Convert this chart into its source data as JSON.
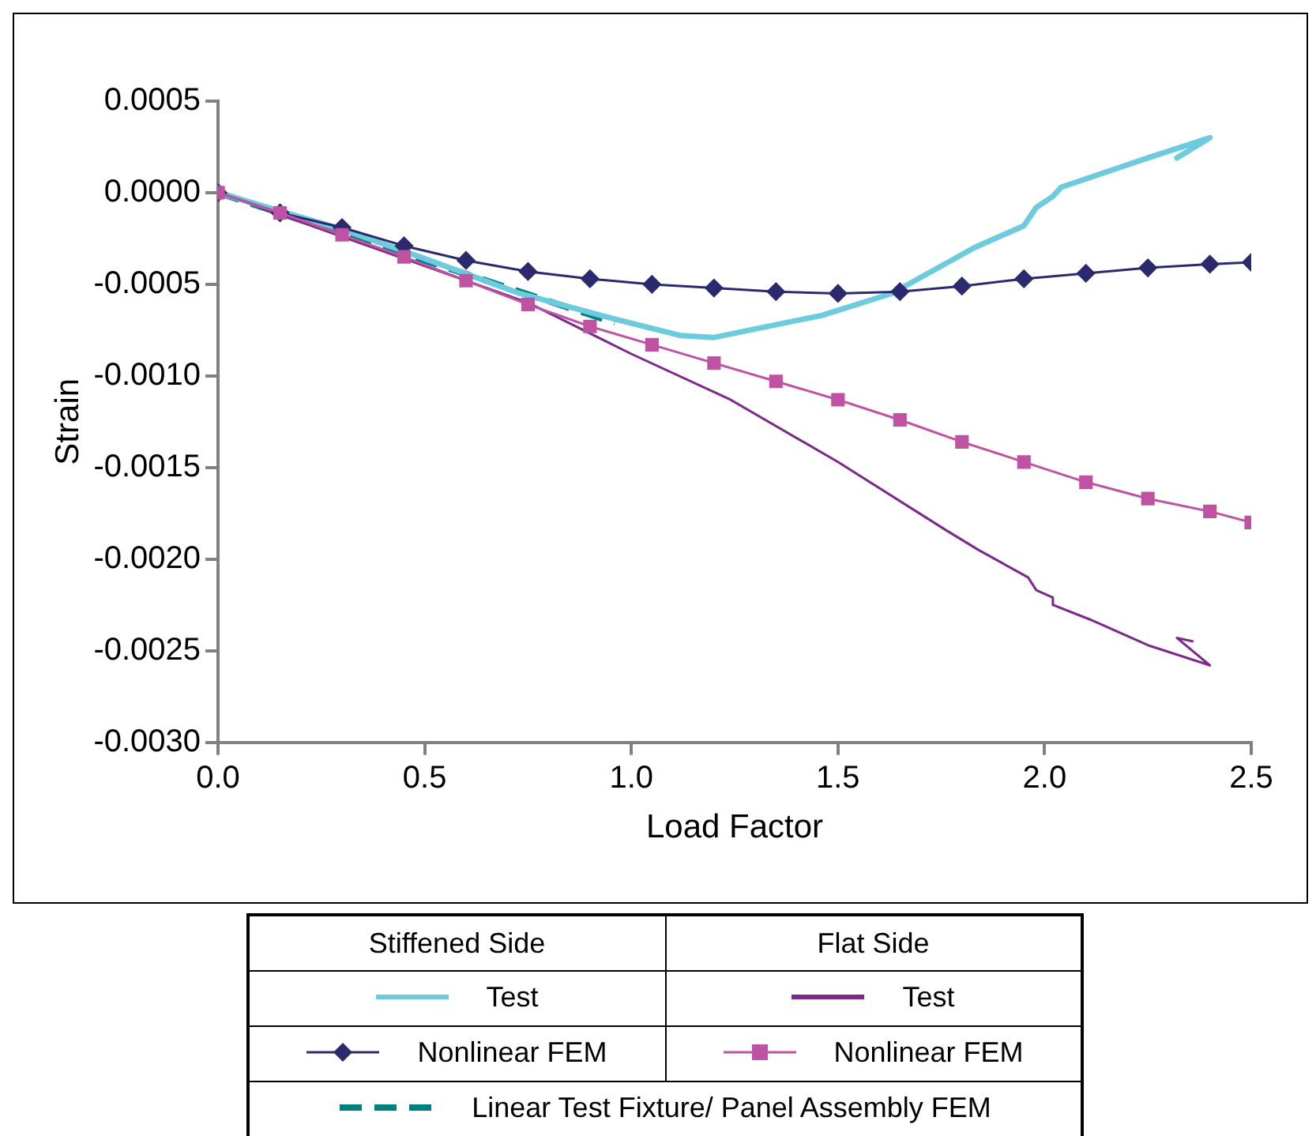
{
  "chart_data": {
    "type": "line",
    "xlabel": "Load Factor",
    "ylabel": "Strain",
    "annotations": [
      "Stiffened Side",
      "Flat Side"
    ],
    "xlim": [
      0,
      2.5
    ],
    "xticks": [
      {
        "value": 0,
        "label": "0.0"
      },
      {
        "value": 0.5,
        "label": "0.5"
      },
      {
        "value": 1,
        "label": "1.0"
      },
      {
        "value": 1.5,
        "label": "1.5"
      },
      {
        "value": 2,
        "label": "2.0"
      },
      {
        "value": 2.5,
        "label": "2.5"
      }
    ],
    "ylim": [
      -0.003,
      0.0005
    ],
    "yticks": [
      {
        "value": -0.003,
        "label": "-0.0030"
      },
      {
        "value": -0.0025,
        "label": "-0.0025"
      },
      {
        "value": -0.002,
        "label": "-0.0020"
      },
      {
        "value": -0.0015,
        "label": "-0.0015"
      },
      {
        "value": -0.001,
        "label": "-0.0010"
      },
      {
        "value": -0.0005,
        "label": "-0.0005"
      },
      {
        "value": 0,
        "label": "0.0000"
      },
      {
        "value": 0.0005,
        "label": "0.0005"
      }
    ],
    "grid": false,
    "legend": "bottom",
    "series": [
      {
        "name": "Test",
        "color": "#6ccbdc",
        "marker": "none",
        "x": [
          0,
          0.3,
          0.5,
          0.73,
          0.96,
          1.12,
          1.2,
          1.46,
          1.63,
          1.83,
          1.95,
          1.98,
          2.02,
          2.04,
          2.25,
          2.4,
          2.32,
          2.35
        ],
        "values": [
          0,
          -0.0002,
          -0.00036,
          -0.00055,
          -0.00069,
          -0.00078,
          -0.00079,
          -0.00067,
          -0.00055,
          -0.0003,
          -0.00018,
          -8e-05,
          -2e-05,
          3e-05,
          0.00019,
          0.0003,
          0.00019,
          0.00023
        ]
      },
      {
        "name": "Nonlinear FEM",
        "color": "#2b2a6e",
        "marker": "diamond",
        "x": [
          0,
          0.15,
          0.3,
          0.45,
          0.6,
          0.75,
          0.9,
          1.05,
          1.2,
          1.35,
          1.5,
          1.65,
          1.8,
          1.95,
          2.1,
          2.25,
          2.4,
          2.5
        ],
        "values": [
          0,
          -0.00011,
          -0.00019,
          -0.00029,
          -0.00037,
          -0.00043,
          -0.00047,
          -0.0005,
          -0.00052,
          -0.00054,
          -0.00055,
          -0.00054,
          -0.00051,
          -0.00047,
          -0.00044,
          -0.00041,
          -0.00039,
          -0.00038
        ]
      },
      {
        "name": "Test",
        "color": "#7b2a8a",
        "marker": "none",
        "x": [
          0,
          0.75,
          1,
          1.24,
          1.5,
          1.76,
          1.84,
          1.96,
          1.98,
          2.02,
          2.02,
          2.11,
          2.25,
          2.4,
          2.32,
          2.36
        ],
        "values": [
          0,
          -0.0006,
          -0.00088,
          -0.00113,
          -0.00147,
          -0.00184,
          -0.00195,
          -0.0021,
          -0.00217,
          -0.00221,
          -0.00225,
          -0.00233,
          -0.00247,
          -0.00258,
          -0.00243,
          -0.00245
        ]
      },
      {
        "name": "Nonlinear FEM",
        "color": "#c052a4",
        "marker": "square",
        "x": [
          0,
          0.15,
          0.3,
          0.45,
          0.6,
          0.75,
          0.9,
          1.05,
          1.2,
          1.35,
          1.5,
          1.65,
          1.8,
          1.95,
          2.1,
          2.25,
          2.4,
          2.5
        ],
        "values": [
          0,
          -0.00011,
          -0.00023,
          -0.00035,
          -0.00048,
          -0.00061,
          -0.00073,
          -0.00083,
          -0.00093,
          -0.00103,
          -0.00113,
          -0.00124,
          -0.00136,
          -0.00147,
          -0.00158,
          -0.00167,
          -0.00174,
          -0.0018
        ]
      },
      {
        "name": "Linear Test Fixture/ Panel Assembly FEM",
        "color": "#008080",
        "marker": "none",
        "line_style": "dashed",
        "x": [
          0,
          0.96
        ],
        "values": [
          0,
          -0.00071
        ]
      }
    ]
  }
}
